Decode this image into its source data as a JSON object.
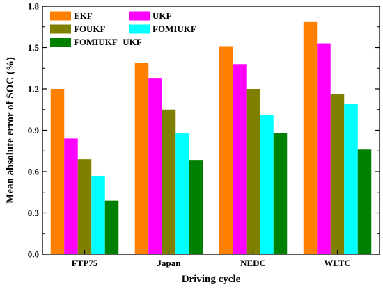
{
  "chart_data": {
    "type": "bar",
    "xlabel": "Driving cycle",
    "ylabel": "Mean absolute error of SOC (%)",
    "ylim": [
      0,
      1.8
    ],
    "yticks": [
      "0.0",
      "0.3",
      "0.6",
      "0.9",
      "1.2",
      "1.5",
      "1.8"
    ],
    "categories": [
      "FTP75",
      "Japan",
      "NEDC",
      "WLTC"
    ],
    "series": [
      {
        "name": "EKF",
        "color": "#FF8000",
        "values": [
          1.2,
          1.39,
          1.51,
          1.69
        ]
      },
      {
        "name": "UKF",
        "color": "#FF00FF",
        "values": [
          0.84,
          1.28,
          1.38,
          1.53
        ]
      },
      {
        "name": "FOUKF",
        "color": "#808000",
        "values": [
          0.69,
          1.05,
          1.2,
          1.16
        ]
      },
      {
        "name": "FOMIUKF",
        "color": "#00FFFF",
        "values": [
          0.57,
          0.88,
          1.01,
          1.09
        ]
      },
      {
        "name": "FOMIUKF+UKF",
        "color": "#008000",
        "values": [
          0.39,
          0.68,
          0.88,
          0.76
        ]
      }
    ],
    "grid": false,
    "legend_position": "top-left"
  }
}
